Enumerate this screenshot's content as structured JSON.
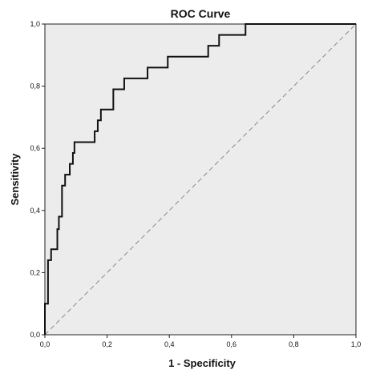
{
  "chart_data": {
    "type": "line",
    "title": "ROC Curve",
    "xlabel": "1 - Specificity",
    "ylabel": "Sensitivity",
    "xlim": [
      0,
      1
    ],
    "ylim": [
      0,
      1
    ],
    "x_ticks": [
      "0,0",
      "0,2",
      "0,4",
      "0,6",
      "0,8",
      "1,0"
    ],
    "y_ticks": [
      "0,0",
      "0,2",
      "0,4",
      "0,6",
      "0,8",
      "1,0"
    ],
    "grid": false,
    "legend": "none",
    "colors": {
      "plot_background": "#ececec",
      "curve": "#111111",
      "reference": "#8a8a8a"
    },
    "series": [
      {
        "type": "step",
        "x": [
          0.0,
          0.0,
          0.01,
          0.01,
          0.02,
          0.02,
          0.04,
          0.04,
          0.045,
          0.045,
          0.055,
          0.055,
          0.065,
          0.065,
          0.08,
          0.08,
          0.09,
          0.09,
          0.095,
          0.095,
          0.16,
          0.16,
          0.17,
          0.17,
          0.18,
          0.18,
          0.19,
          0.19,
          0.22,
          0.22,
          0.235,
          0.235,
          0.255,
          0.255,
          0.33,
          0.33,
          0.395,
          0.395,
          0.525,
          0.525,
          0.56,
          0.56,
          0.645,
          0.645,
          1.0
        ],
        "y": [
          0.0,
          0.1,
          0.1,
          0.24,
          0.24,
          0.275,
          0.275,
          0.34,
          0.34,
          0.38,
          0.38,
          0.48,
          0.48,
          0.515,
          0.515,
          0.55,
          0.55,
          0.585,
          0.585,
          0.62,
          0.62,
          0.655,
          0.655,
          0.69,
          0.69,
          0.725,
          0.725,
          0.725,
          0.725,
          0.79,
          0.79,
          0.79,
          0.79,
          0.825,
          0.825,
          0.86,
          0.86,
          0.895,
          0.895,
          0.93,
          0.93,
          0.965,
          0.965,
          1.0,
          1.0
        ]
      },
      {
        "type": "reference",
        "x": [
          0,
          1
        ],
        "y": [
          0,
          1
        ]
      }
    ]
  }
}
